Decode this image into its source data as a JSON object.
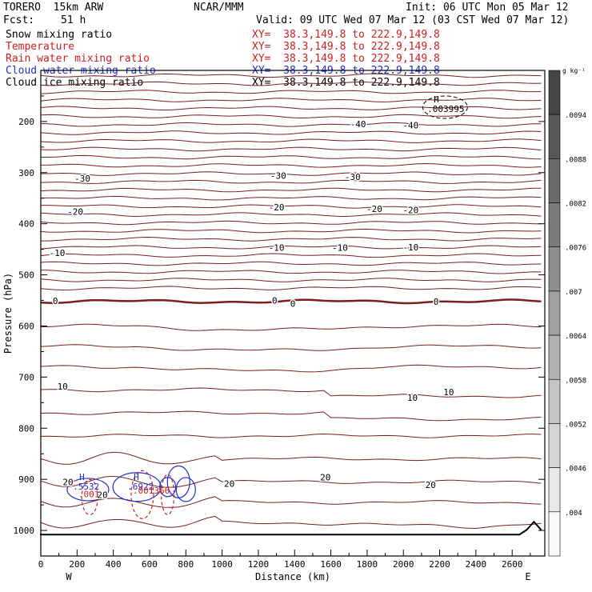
{
  "header": {
    "model": "TORERO  15km ARW",
    "org": "NCAR/MMM",
    "init": "Init: 06 UTC Mon 05 Mar 12",
    "fcst_label": "Fcst:",
    "fcst_value": "51 h",
    "valid": "Valid: 09 UTC Wed 07 Mar 12 (03 CST Wed 07 Mar 12)"
  },
  "legend": [
    {
      "name": "Snow mixing ratio",
      "xy": "XY=  38.3,149.8 to 222.9,149.8",
      "color": "#000000"
    },
    {
      "name": "Temperature",
      "xy": "XY=  38.3,149.8 to 222.9,149.8",
      "color": "#cc1f1f"
    },
    {
      "name": "Rain water mixing ratio",
      "xy": "XY=  38.3,149.8 to 222.9,149.8",
      "color": "#cc1f1f"
    },
    {
      "name": "Cloud water mixing ratio",
      "xy": "XY=  38.3,149.8 to 222.9,149.8",
      "color": "#1f2fcc"
    },
    {
      "name": "Cloud ice mixing ratio",
      "xy": "XY=  38.3,149.8 to 222.9,149.8",
      "color": "#000000"
    }
  ],
  "chart_data": {
    "type": "contour-cross-section",
    "xlabel": "Distance (km)",
    "ylabel": "Pressure (hPa)",
    "xlim": [
      0,
      2780
    ],
    "ylim": [
      1050,
      100
    ],
    "x_ticks": [
      0,
      200,
      400,
      600,
      800,
      1000,
      1200,
      1400,
      1600,
      1800,
      2000,
      2200,
      2400,
      2600
    ],
    "y_ticks": [
      200,
      300,
      400,
      500,
      600,
      700,
      800,
      900,
      1000
    ],
    "x_end_labels": {
      "left": "W",
      "right": "E"
    },
    "colorbar": {
      "unit": "g kg⁻¹",
      "labels": [
        ".0094",
        ".0088",
        ".0082",
        ".0076",
        ".007",
        ".0064",
        ".0058",
        ".0052",
        ".0046",
        ".004"
      ]
    },
    "temperature_labels": [
      {
        "text": "-40",
        "x": 1750,
        "p": 205
      },
      {
        "text": "-40",
        "x": 2040,
        "p": 207
      },
      {
        "text": "-30",
        "x": 230,
        "p": 311
      },
      {
        "text": "-30",
        "x": 1310,
        "p": 306
      },
      {
        "text": "-30",
        "x": 1720,
        "p": 308
      },
      {
        "text": "-20",
        "x": 190,
        "p": 376
      },
      {
        "text": "-20",
        "x": 1300,
        "p": 368
      },
      {
        "text": "-20",
        "x": 1840,
        "p": 371
      },
      {
        "text": "-20",
        "x": 2040,
        "p": 373
      },
      {
        "text": "-10",
        "x": 90,
        "p": 457
      },
      {
        "text": "-10",
        "x": 1300,
        "p": 447
      },
      {
        "text": "-10",
        "x": 1650,
        "p": 447
      },
      {
        "text": "-10",
        "x": 2040,
        "p": 446
      },
      {
        "text": "0",
        "x": 80,
        "p": 551
      },
      {
        "text": "0",
        "x": 1290,
        "p": 550
      },
      {
        "text": "0",
        "x": 1390,
        "p": 556
      },
      {
        "text": "0",
        "x": 2180,
        "p": 552
      },
      {
        "text": "10",
        "x": 120,
        "p": 718
      },
      {
        "text": "10",
        "x": 2050,
        "p": 740
      },
      {
        "text": "10",
        "x": 2250,
        "p": 729
      },
      {
        "text": "20",
        "x": 150,
        "p": 905
      },
      {
        "text": "20",
        "x": 340,
        "p": 930
      },
      {
        "text": "20",
        "x": 1040,
        "p": 908
      },
      {
        "text": "20",
        "x": 1570,
        "p": 896
      },
      {
        "text": "20",
        "x": 2150,
        "p": 911
      }
    ],
    "highs": [
      {
        "label": "H",
        "value": ".003995",
        "x": 2185,
        "p": 178,
        "color": "#000000"
      },
      {
        "label": "H",
        "value": ".5532",
        "x": 230,
        "p": 917,
        "color": "#1f2fcc"
      },
      {
        "label": "H",
        "value": ".6922",
        "x": 530,
        "p": 917,
        "color": "#1f2fcc"
      },
      {
        "label": "",
        "value": ".001",
        "x": 260,
        "p": 932,
        "color": "#cc1f1f"
      },
      {
        "label": "",
        "value": ".001366",
        "x": 560,
        "p": 925,
        "color": "#cc1f1f"
      }
    ]
  }
}
